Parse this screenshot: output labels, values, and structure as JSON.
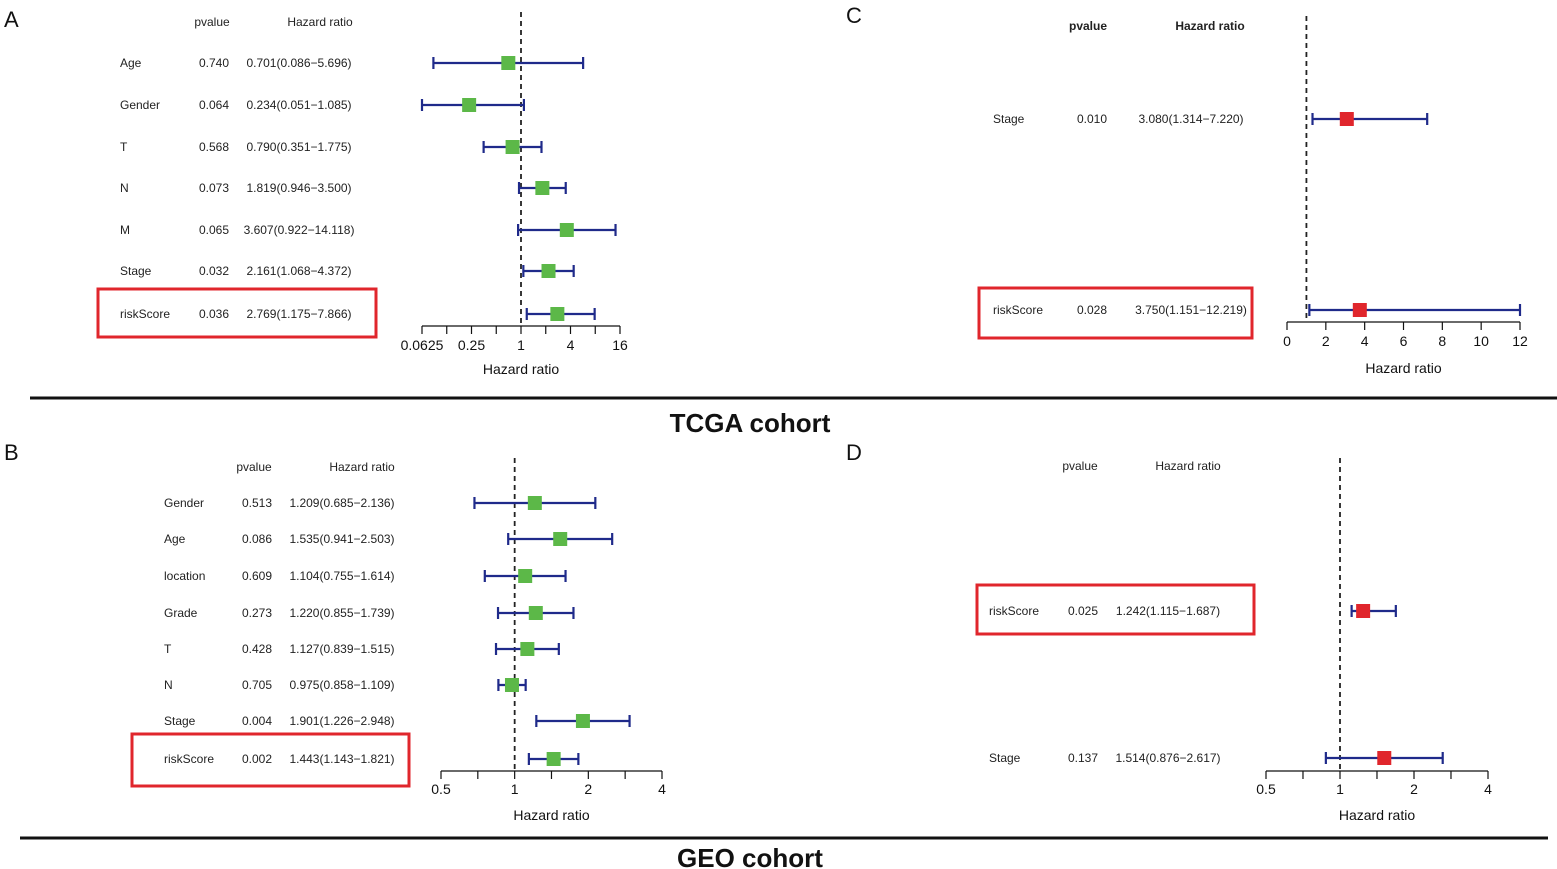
{
  "colors": {
    "ci_line": "#1f2a8a",
    "box_green": "#5cb848",
    "box_red": "#e0262c",
    "highlight": "#e0262c",
    "ref_line": "#222222"
  },
  "cohorts": {
    "tcga": "TCGA cohort",
    "geo": "GEO cohort"
  },
  "chart_data": [
    {
      "panel": "A",
      "type": "forest",
      "scale": "log2",
      "header_p": "pvalue",
      "header_hr": "Hazard ratio",
      "xlabel": "Hazard ratio",
      "ticks": [
        "0.0625",
        "0.25",
        "1",
        "4",
        "16"
      ],
      "tick_values": [
        0.0625,
        0.25,
        1,
        4,
        16
      ],
      "xlim": [
        0.0625,
        16
      ],
      "ref": 1,
      "box": "green",
      "highlight": "riskScore",
      "rows": [
        {
          "label": "Age",
          "p": "0.740",
          "hr_text": "0.701(0.086−5.696)",
          "hr": 0.701,
          "lo": 0.086,
          "hi": 5.696
        },
        {
          "label": "Gender",
          "p": "0.064",
          "hr_text": "0.234(0.051−1.085)",
          "hr": 0.234,
          "lo": 0.051,
          "hi": 1.085
        },
        {
          "label": "T",
          "p": "0.568",
          "hr_text": "0.790(0.351−1.775)",
          "hr": 0.79,
          "lo": 0.351,
          "hi": 1.775
        },
        {
          "label": "N",
          "p": "0.073",
          "hr_text": "1.819(0.946−3.500)",
          "hr": 1.819,
          "lo": 0.946,
          "hi": 3.5
        },
        {
          "label": "M",
          "p": "0.065",
          "hr_text": "3.607(0.922−14.118)",
          "hr": 3.607,
          "lo": 0.922,
          "hi": 14.118
        },
        {
          "label": "Stage",
          "p": "0.032",
          "hr_text": "2.161(1.068−4.372)",
          "hr": 2.161,
          "lo": 1.068,
          "hi": 4.372
        },
        {
          "label": "riskScore",
          "p": "0.036",
          "hr_text": "2.769(1.175−7.866)",
          "hr": 2.769,
          "lo": 1.175,
          "hi": 7.866
        }
      ]
    },
    {
      "panel": "C",
      "type": "forest",
      "scale": "linear",
      "header_p": "pvalue",
      "header_hr": "Hazard ratio",
      "xlabel": "Hazard ratio",
      "ticks": [
        "0",
        "2",
        "4",
        "6",
        "8",
        "10",
        "12"
      ],
      "tick_values": [
        0,
        2,
        4,
        6,
        8,
        10,
        12
      ],
      "xlim": [
        0,
        12
      ],
      "ref": 1,
      "box": "red",
      "highlight": "riskScore",
      "rows": [
        {
          "label": "Stage",
          "p": "0.010",
          "hr_text": "3.080(1.314−7.220)",
          "hr": 3.08,
          "lo": 1.314,
          "hi": 7.22
        },
        {
          "label": "riskScore",
          "p": "0.028",
          "hr_text": "3.750(1.151−12.219)",
          "hr": 3.75,
          "lo": 1.151,
          "hi": 12.219
        }
      ]
    },
    {
      "panel": "B",
      "type": "forest",
      "scale": "log2",
      "header_p": "pvalue",
      "header_hr": "Hazard ratio",
      "xlabel": "Hazard ratio",
      "ticks": [
        "0.5",
        "1",
        "2",
        "4"
      ],
      "tick_values": [
        0.5,
        1,
        2,
        4
      ],
      "xlim": [
        0.5,
        4
      ],
      "ref": 1,
      "box": "green",
      "highlight": "riskScore",
      "rows": [
        {
          "label": "Gender",
          "p": "0.513",
          "hr_text": "1.209(0.685−2.136)",
          "hr": 1.209,
          "lo": 0.685,
          "hi": 2.136
        },
        {
          "label": "Age",
          "p": "0.086",
          "hr_text": "1.535(0.941−2.503)",
          "hr": 1.535,
          "lo": 0.941,
          "hi": 2.503
        },
        {
          "label": "location",
          "p": "0.609",
          "hr_text": "1.104(0.755−1.614)",
          "hr": 1.104,
          "lo": 0.755,
          "hi": 1.614
        },
        {
          "label": "Grade",
          "p": "0.273",
          "hr_text": "1.220(0.855−1.739)",
          "hr": 1.22,
          "lo": 0.855,
          "hi": 1.739
        },
        {
          "label": "T",
          "p": "0.428",
          "hr_text": "1.127(0.839−1.515)",
          "hr": 1.127,
          "lo": 0.839,
          "hi": 1.515
        },
        {
          "label": "N",
          "p": "0.705",
          "hr_text": "0.975(0.858−1.109)",
          "hr": 0.975,
          "lo": 0.858,
          "hi": 1.109
        },
        {
          "label": "Stage",
          "p": "0.004",
          "hr_text": "1.901(1.226−2.948)",
          "hr": 1.901,
          "lo": 1.226,
          "hi": 2.948
        },
        {
          "label": "riskScore",
          "p": "0.002",
          "hr_text": "1.443(1.143−1.821)",
          "hr": 1.443,
          "lo": 1.143,
          "hi": 1.821
        }
      ]
    },
    {
      "panel": "D",
      "type": "forest",
      "scale": "log2",
      "header_p": "pvalue",
      "header_hr": "Hazard ratio",
      "xlabel": "Hazard ratio",
      "ticks": [
        "0.5",
        "1",
        "2",
        "4"
      ],
      "tick_values": [
        0.5,
        1,
        2,
        4
      ],
      "xlim": [
        0.5,
        4
      ],
      "ref": 1,
      "box": "red",
      "highlight": "riskScore",
      "rows": [
        {
          "label": "riskScore",
          "p": "0.025",
          "hr_text": "1.242(1.115−1.687)",
          "hr": 1.242,
          "lo": 1.115,
          "hi": 1.687
        },
        {
          "label": "Stage",
          "p": "0.137",
          "hr_text": "1.514(0.876−2.617)",
          "hr": 1.514,
          "lo": 0.876,
          "hi": 2.617
        }
      ]
    }
  ]
}
